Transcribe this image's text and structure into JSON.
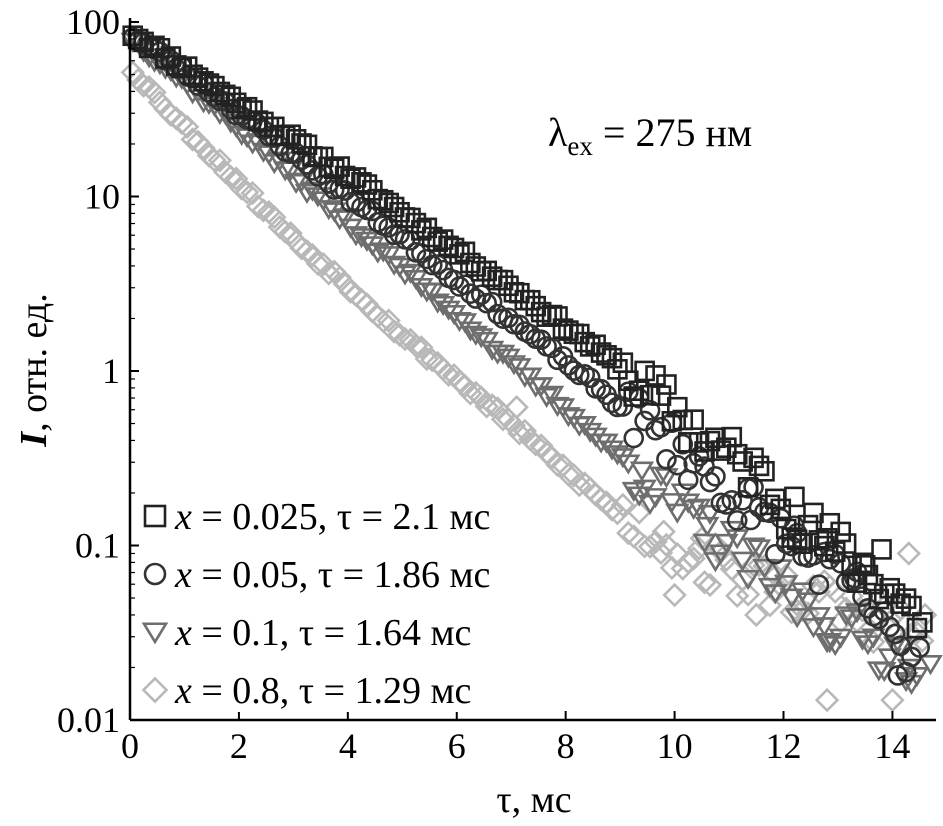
{
  "chart_data": {
    "type": "scatter",
    "x_scale": "linear",
    "y_scale": "log",
    "xlim": [
      0,
      14.8
    ],
    "ylim": [
      0.01,
      100
    ],
    "x_ticks": [
      0,
      2,
      4,
      6,
      8,
      10,
      12,
      14
    ],
    "y_ticks": [
      0.01,
      0.1,
      1,
      10,
      100
    ],
    "y_tick_labels": [
      "0.01",
      "0.1",
      "1",
      "10",
      "100"
    ],
    "xlabel": "τ, мс",
    "ylabel_italic": "I",
    "ylabel_rest": ", отн. ед.",
    "annotation": {
      "lambda": "λ",
      "sub": "ex",
      "rest": " = 275 нм"
    },
    "legend_position": "bottom-left",
    "series": [
      {
        "legend_var": "x",
        "legend_rest": " = 0.025, τ = 2.1 мс",
        "marker": "square",
        "color": "#222222",
        "noise_seed": 11,
        "points": [
          [
            0.0,
            88.0
          ],
          [
            1.0,
            55.0
          ],
          [
            2.0,
            34.0
          ],
          [
            3.0,
            21.0
          ],
          [
            4.0,
            13.3
          ],
          [
            5.0,
            8.0
          ],
          [
            6.0,
            4.9
          ],
          [
            7.0,
            3.0
          ],
          [
            8.0,
            1.8
          ],
          [
            9.0,
            1.05
          ],
          [
            9.5,
            0.75
          ],
          [
            10.0,
            0.6
          ],
          [
            10.5,
            0.42
          ],
          [
            11.0,
            0.33
          ],
          [
            11.5,
            0.26
          ],
          [
            12.0,
            0.17
          ],
          [
            12.5,
            0.12
          ],
          [
            13.0,
            0.095
          ],
          [
            13.5,
            0.07
          ],
          [
            14.0,
            0.055
          ],
          [
            14.6,
            0.035
          ]
        ],
        "outliers": [
          [
            12.2,
            0.19
          ],
          [
            12.8,
            0.11
          ],
          [
            13.8,
            0.095
          ],
          [
            13.5,
            0.077
          ]
        ]
      },
      {
        "legend_var": "x",
        "legend_rest": " = 0.05, τ = 1.86 мс",
        "marker": "circle",
        "color": "#333333",
        "noise_seed": 23,
        "points": [
          [
            0.0,
            86.0
          ],
          [
            1.0,
            52.0
          ],
          [
            2.0,
            30.0
          ],
          [
            3.0,
            17.5
          ],
          [
            4.0,
            10.0
          ],
          [
            5.0,
            5.8
          ],
          [
            6.0,
            3.3
          ],
          [
            7.0,
            1.95
          ],
          [
            8.0,
            1.12
          ],
          [
            9.0,
            0.63
          ],
          [
            10.0,
            0.38
          ],
          [
            10.5,
            0.27
          ],
          [
            11.0,
            0.2
          ],
          [
            11.5,
            0.16
          ],
          [
            12.0,
            0.11
          ],
          [
            12.5,
            0.085
          ],
          [
            13.0,
            0.065
          ],
          [
            13.5,
            0.05
          ],
          [
            14.0,
            0.027
          ],
          [
            14.4,
            0.024
          ]
        ],
        "outliers": [
          [
            11.4,
            0.14
          ],
          [
            12.2,
            0.13
          ],
          [
            13.3,
            0.065
          ],
          [
            14.1,
            0.018
          ],
          [
            14.5,
            0.026
          ]
        ]
      },
      {
        "legend_var": "x",
        "legend_rest": " = 0.1, τ = 1.64 мс",
        "marker": "triangle-down",
        "color": "#6e6e6e",
        "noise_seed": 37,
        "points": [
          [
            0.0,
            82.0
          ],
          [
            1.0,
            45.0
          ],
          [
            2.0,
            24.5
          ],
          [
            3.0,
            13.0
          ],
          [
            4.0,
            7.0
          ],
          [
            5.0,
            3.8
          ],
          [
            6.0,
            2.1
          ],
          [
            7.0,
            1.1
          ],
          [
            8.0,
            0.6
          ],
          [
            9.0,
            0.32
          ],
          [
            10.0,
            0.17
          ],
          [
            11.0,
            0.095
          ],
          [
            12.0,
            0.055
          ],
          [
            12.5,
            0.042
          ],
          [
            13.0,
            0.035
          ],
          [
            13.5,
            0.029
          ],
          [
            14.0,
            0.024
          ],
          [
            14.5,
            0.021
          ]
        ],
        "outliers": [
          [
            9.4,
            0.27
          ],
          [
            10.6,
            0.13
          ],
          [
            12.8,
            0.028
          ],
          [
            14.3,
            0.02
          ],
          [
            14.7,
            0.021
          ]
        ]
      },
      {
        "legend_var": "x",
        "legend_rest": " = 0.8, τ = 1.29 мс",
        "marker": "diamond",
        "color": "#b8b8b8",
        "noise_seed": 53,
        "points": [
          [
            0.0,
            55.0
          ],
          [
            1.0,
            25.0
          ],
          [
            2.0,
            12.0
          ],
          [
            3.0,
            5.7
          ],
          [
            4.0,
            3.1
          ],
          [
            5.0,
            1.6
          ],
          [
            6.0,
            0.9
          ],
          [
            7.0,
            0.5
          ],
          [
            8.0,
            0.27
          ],
          [
            9.0,
            0.15
          ],
          [
            10.0,
            0.095
          ],
          [
            11.0,
            0.07
          ],
          [
            12.0,
            0.055
          ],
          [
            13.0,
            0.045
          ],
          [
            14.0,
            0.035
          ],
          [
            14.6,
            0.03
          ]
        ],
        "outliers": [
          [
            7.1,
            0.62
          ],
          [
            9.8,
            0.12
          ],
          [
            10.0,
            0.052
          ],
          [
            11.5,
            0.04
          ],
          [
            12.8,
            0.013
          ],
          [
            14.0,
            0.013
          ],
          [
            14.3,
            0.09
          ],
          [
            14.6,
            0.04
          ],
          [
            10.5,
            0.11
          ],
          [
            11.8,
            0.07
          ]
        ]
      }
    ]
  }
}
